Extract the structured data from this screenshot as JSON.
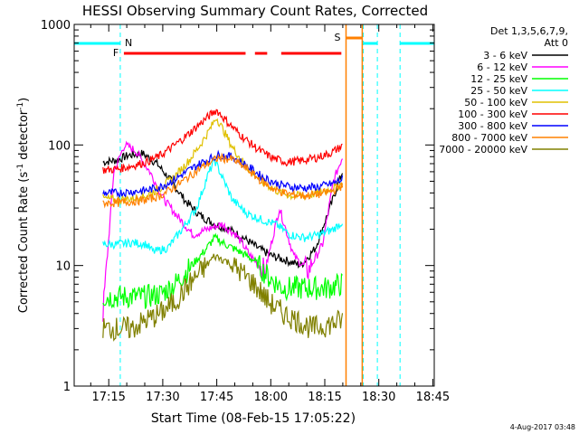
{
  "chart_data": {
    "type": "line",
    "title": "HESSI Observing Summary Count Rates, Corrected",
    "xlabel": "Start Time (08-Feb-15 17:05:22)",
    "ylabel": "Corrected Count Rate (s",
    "ylabel_sup1": "-1",
    "ylabel_mid": " detector",
    "ylabel_sup2": "-1",
    "ylabel_end": ")",
    "yscale": "log",
    "ylim": [
      1,
      1000
    ],
    "xlim_minutes": [
      0,
      100
    ],
    "x_ticks": [
      {
        "label": "17:15",
        "min": 9.6
      },
      {
        "label": "17:30",
        "min": 24.6
      },
      {
        "label": "17:45",
        "min": 39.6
      },
      {
        "label": "18:00",
        "min": 54.6
      },
      {
        "label": "18:15",
        "min": 69.6
      },
      {
        "label": "18:30",
        "min": 84.6
      },
      {
        "label": "18:45",
        "min": 99.6
      }
    ],
    "y_ticks": [
      {
        "label": "1",
        "value": 1
      },
      {
        "label": "10",
        "value": 10
      },
      {
        "label": "100",
        "value": 100
      },
      {
        "label": "1000",
        "value": 1000
      }
    ],
    "legend_header1": "Det 1,3,5,6,7,9,",
    "legend_header2": "Att 0",
    "flags": {
      "N_label": "N",
      "F_label": "F",
      "S_label": "S",
      "night_color": "#00ffff",
      "flare_color": "#ff0000",
      "saa_color": "#ff8000",
      "night": [
        [
          0,
          12.8
        ],
        [
          80.3,
          84.2
        ],
        [
          90.5,
          100
        ]
      ],
      "flare": [
        [
          13.8,
          47.6
        ],
        [
          50.2,
          53.6
        ],
        [
          57.5,
          74.2
        ]
      ],
      "saa": [
        [
          75.5,
          80.0
        ]
      ]
    },
    "series": [
      {
        "name": "3 - 6 keV",
        "color": "#000000",
        "x": [
          8,
          12,
          15,
          19,
          23,
          27,
          31,
          35,
          39,
          43,
          47,
          51,
          55,
          59,
          63,
          67,
          71,
          74.5
        ],
        "y": [
          72,
          75,
          82,
          85,
          70,
          50,
          34,
          26,
          22,
          20,
          17,
          14,
          12,
          11,
          10,
          14,
          30,
          60
        ]
      },
      {
        "name": "6 - 12 keV",
        "color": "#ff00ff",
        "x": [
          8,
          11,
          14,
          17,
          21,
          25,
          29,
          33,
          37,
          41,
          45,
          49,
          53,
          57,
          61,
          65,
          69,
          72,
          74.5
        ],
        "y": [
          4,
          60,
          100,
          90,
          60,
          35,
          25,
          18,
          20,
          22,
          18,
          12,
          9,
          30,
          12,
          9,
          15,
          50,
          80
        ]
      },
      {
        "name": "12 - 25 keV",
        "color": "#00ff00",
        "x": [
          8,
          12,
          16,
          20,
          24,
          28,
          32,
          36,
          39,
          42,
          46,
          50,
          54,
          58,
          62,
          66,
          70,
          74.5
        ],
        "y": [
          5.5,
          5.5,
          5.5,
          5.5,
          5.8,
          7,
          9.5,
          13,
          17,
          15,
          13,
          11,
          8,
          6.5,
          6.5,
          6.5,
          6.5,
          7
        ]
      },
      {
        "name": "25 - 50 keV",
        "color": "#00ffff",
        "x": [
          8,
          12,
          16,
          20,
          22,
          26,
          30,
          34,
          37,
          39,
          41,
          44,
          48,
          52,
          56,
          60,
          64,
          68,
          72,
          74.5
        ],
        "y": [
          15,
          15,
          15.5,
          15,
          13,
          14,
          20,
          30,
          55,
          75,
          55,
          35,
          27,
          24,
          22,
          18,
          17,
          18,
          20,
          23
        ]
      },
      {
        "name": "50 - 100 keV",
        "color": "#e0c000",
        "x": [
          8,
          12,
          16,
          20,
          24,
          28,
          32,
          35,
          38,
          39.5,
          41,
          44,
          48,
          52,
          56,
          60,
          64,
          68,
          72,
          74.5
        ],
        "y": [
          36,
          35,
          36,
          38,
          44,
          55,
          75,
          100,
          140,
          170,
          140,
          95,
          65,
          50,
          42,
          38,
          38,
          40,
          44,
          48
        ]
      },
      {
        "name": "100 - 300 keV",
        "color": "#ff0000",
        "x": [
          8,
          12,
          16,
          20,
          24,
          28,
          32,
          36,
          39.5,
          43,
          47,
          51,
          55,
          59,
          63,
          67,
          71,
          74.5
        ],
        "y": [
          62,
          63,
          67,
          72,
          82,
          100,
          125,
          160,
          195,
          150,
          115,
          92,
          78,
          72,
          74,
          78,
          85,
          98
        ]
      },
      {
        "name": "300 - 800 keV",
        "color": "#0000ff",
        "x": [
          8,
          12,
          16,
          20,
          24,
          28,
          32,
          36,
          40,
          44,
          48,
          52,
          56,
          60,
          64,
          68,
          72,
          74.5
        ],
        "y": [
          40,
          40,
          41,
          42,
          45,
          52,
          62,
          73,
          82,
          80,
          67,
          55,
          48,
          45,
          44,
          45,
          48,
          52
        ]
      },
      {
        "name": "800 - 7000 keV",
        "color": "#ff8000",
        "x": [
          8,
          12,
          16,
          20,
          24,
          28,
          32,
          36,
          40,
          44,
          48,
          52,
          56,
          60,
          64,
          68,
          72,
          74.5
        ],
        "y": [
          33,
          33,
          34,
          35,
          38,
          45,
          55,
          67,
          78,
          76,
          63,
          50,
          42,
          39,
          38,
          39,
          42,
          46
        ]
      },
      {
        "name": "7000 - 20000 keV",
        "color": "#808000",
        "x": [
          8,
          12,
          16,
          20,
          24,
          28,
          32,
          36,
          39,
          42,
          46,
          50,
          54,
          58,
          62,
          66,
          70,
          74.5
        ],
        "y": [
          3,
          3,
          3,
          3.5,
          4,
          5,
          7,
          9.5,
          12,
          11,
          9,
          7,
          5,
          4,
          3.5,
          3,
          3.2,
          3.5
        ]
      }
    ],
    "footer_date": "4-Aug-2017 03:48"
  }
}
